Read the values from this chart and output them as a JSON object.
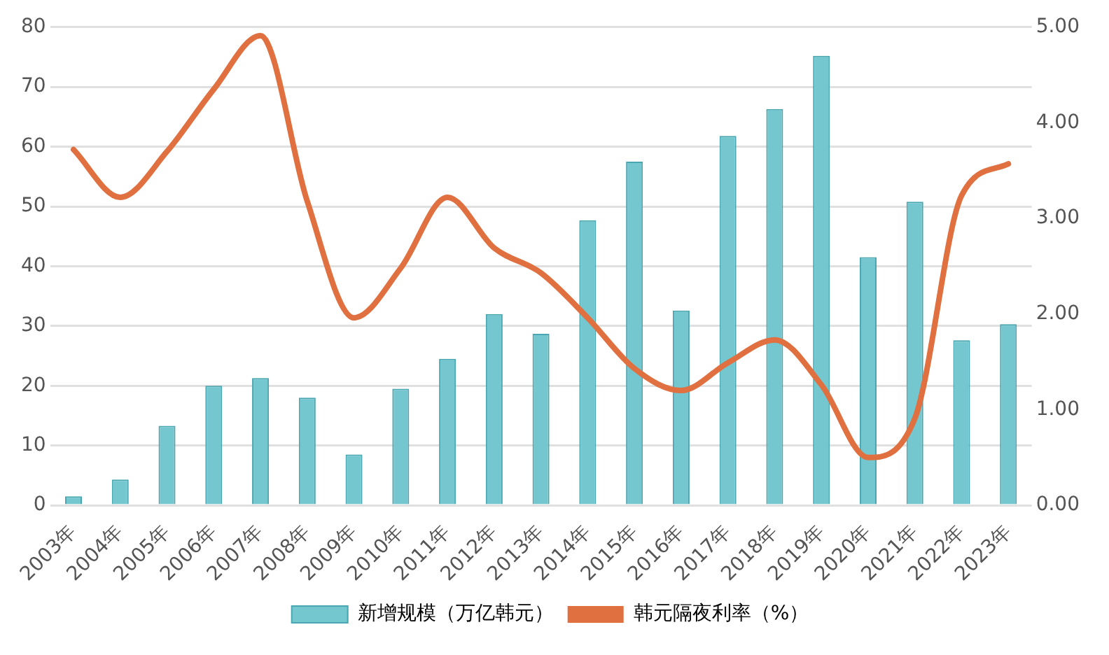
{
  "chart_data": {
    "type": "bar",
    "categories": [
      "2003年",
      "2004年",
      "2005年",
      "2006年",
      "2007年",
      "2008年",
      "2009年",
      "2010年",
      "2011年",
      "2012年",
      "2013年",
      "2014年",
      "2015年",
      "2016年",
      "2017年",
      "2018年",
      "2019年",
      "2020年",
      "2021年",
      "2022年",
      "2023年"
    ],
    "series": [
      {
        "name": "新增规模（万亿韩元）",
        "color": "#74c6cf",
        "values": [
          1.5,
          4.3,
          13.3,
          20,
          21.3,
          18,
          8.5,
          19.5,
          24.5,
          32,
          28.7,
          47.7,
          57.5,
          32.6,
          61.8,
          66.3,
          75.2,
          41.5,
          50.8,
          27.6,
          30.3
        ]
      },
      {
        "name": "韩元隔夜利率（%）",
        "type": "line",
        "axis": "y2",
        "color": "#e07040",
        "marker": "none",
        "line_style": "solid",
        "values": [
          3.72,
          3.22,
          3.7,
          4.35,
          4.91,
          3.18,
          1.96,
          2.48,
          3.22,
          2.69,
          2.43,
          1.96,
          1.43,
          1.2,
          1.49,
          1.73,
          1.26,
          0.5,
          0.91,
          3.24,
          3.57
        ]
      }
    ],
    "ylim": [
      0,
      80
    ],
    "yticks": [
      0,
      10,
      20,
      30,
      40,
      50,
      60,
      70,
      80
    ],
    "y2lim": [
      0,
      5
    ],
    "y2ticks": [
      {
        "value": 0,
        "label": "0.00"
      },
      {
        "value": 1,
        "label": "1.00"
      },
      {
        "value": 2,
        "label": "2.00"
      },
      {
        "value": 3,
        "label": "3.00"
      },
      {
        "value": 4,
        "label": "4.00"
      },
      {
        "value": 5,
        "label": "5.00"
      }
    ],
    "grid": "y",
    "legend": "bottom"
  }
}
